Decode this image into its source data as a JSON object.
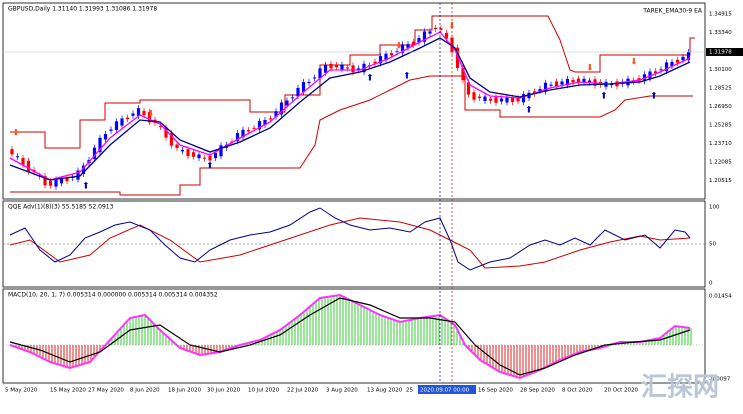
{
  "main_pane": {
    "symbol_info": "GBPUSD,Daily  1.31140 1.31993 1.31086 1.31978",
    "expert": "TAREK_EMA30-9 EA",
    "price_labels": [
      "1.34915",
      "1.33340",
      "1.31978",
      "1.30100",
      "1.28525",
      "1.26950",
      "1.25285",
      "1.23710",
      "1.22085",
      "1.20515"
    ]
  },
  "qqe_pane": {
    "label": "QQE Adv(1)(8)(3) 55.5185 52.0913",
    "axis_labels": [
      "100",
      "50",
      "0"
    ]
  },
  "macd_pane": {
    "label": "MACD(10, 20, 1, 7) 0.005314 0.000000 0.005314 0.005314 0.004352",
    "axis_labels": [
      "0.01454",
      "-0.0097"
    ]
  },
  "date_axis": [
    "5 May 2020",
    "15 May 2020",
    "27 May 2020",
    "8 Jun 2020",
    "18 Jun 2020",
    "30 Jun 2020",
    "10 Jul 2020",
    "22 Jul 2020",
    "3 Aug 2020",
    "13 Aug 2020",
    "25",
    "2020.09.07 00:00",
    "16 Sep 2020",
    "28 Sep 2020",
    "8 Oct 2020",
    "20 Oct 2020"
  ],
  "watermark": "汇探网"
}
